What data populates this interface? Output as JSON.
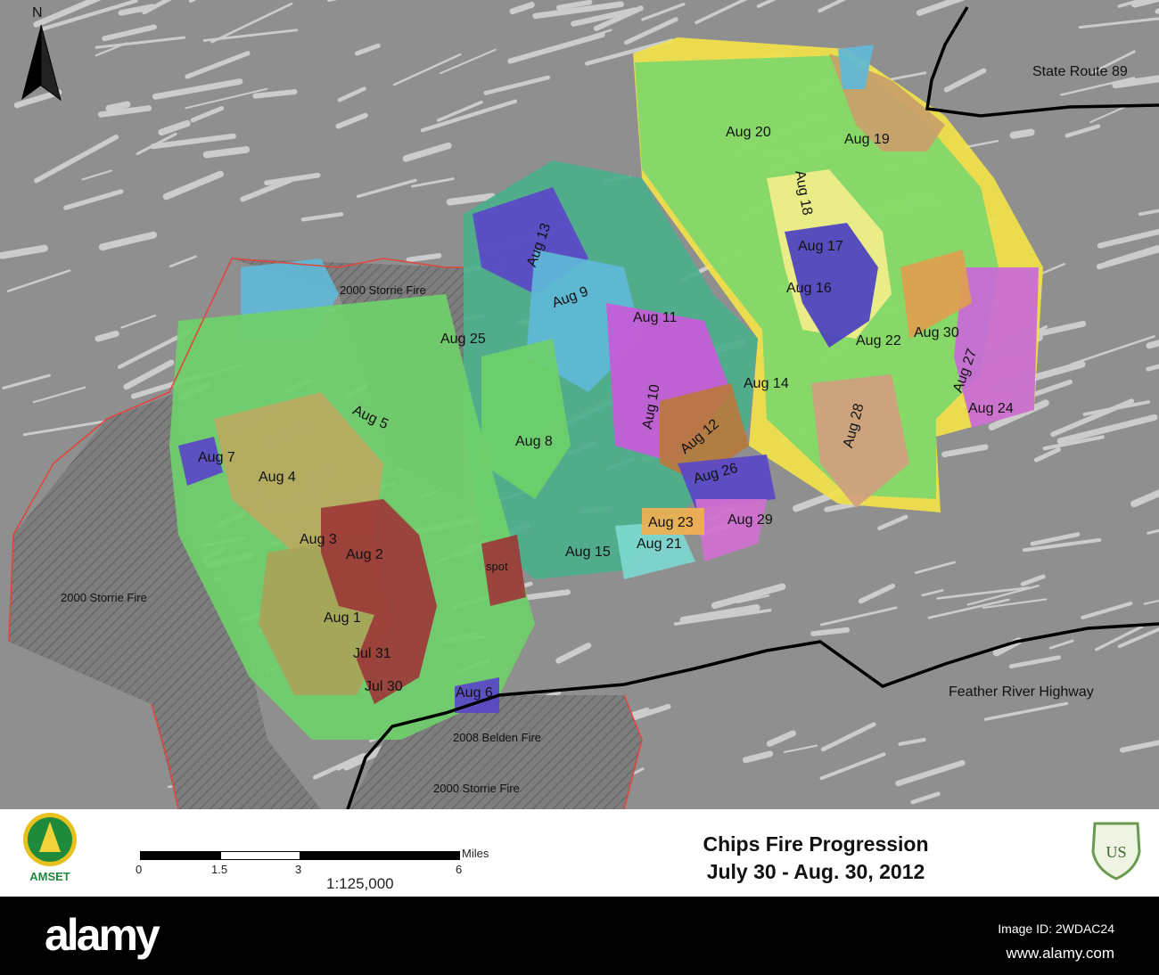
{
  "map": {
    "north_label": "N",
    "road_labels": [
      "State Route 89",
      "Feather River Highway"
    ],
    "fire_labels": [
      "2000 Storrie Fire",
      "2000 Storrie Fire",
      "2000 Storrie Fire",
      "2008 Belden Fire",
      "spot"
    ],
    "progression_labels": [
      "Aug 20",
      "Aug 19",
      "Aug 18",
      "Aug 17",
      "Aug 16",
      "Aug 13",
      "Aug 9",
      "Aug 11",
      "Aug 25",
      "Aug 22",
      "Aug 30",
      "Aug 27",
      "Aug 24",
      "Aug 14",
      "Aug 28",
      "Aug 10",
      "Aug 12",
      "Aug 5",
      "Aug 8",
      "Aug 7",
      "Aug 4",
      "Aug 26",
      "Aug 23",
      "Aug 29",
      "Aug 3",
      "Aug 2",
      "Aug 15",
      "Aug 21",
      "Aug 1",
      "Jul 31",
      "Jul 30",
      "Aug 6"
    ],
    "colors": {
      "terrain": "#8f8f8f",
      "ridge": "#d8d8d8",
      "road": "#000000",
      "old_fire_boundary": "#e0463c",
      "perimeter": "#f2e24a"
    }
  },
  "legend": {
    "title_line1": "Chips Fire Progression",
    "title_line2": "July 30 - Aug. 30, 2012",
    "scale_unit": "Miles",
    "scale_ticks": [
      "0",
      "1.5",
      "3",
      "6"
    ],
    "scale_ratio": "1:125,000",
    "left_logo_text": "AMSET",
    "right_logo_text": "US"
  },
  "watermark": {
    "brand": "alamy",
    "image_id": "Image ID: 2WDAC24",
    "site": "www.alamy.com"
  }
}
